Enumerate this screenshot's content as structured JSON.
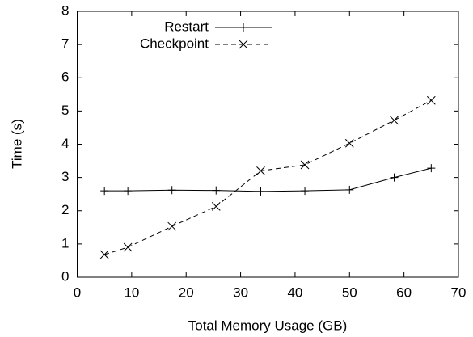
{
  "chart_data": {
    "type": "line",
    "x_label": "Total Memory Usage (GB)",
    "y_label": "Time (s)",
    "xlim": [
      0,
      70
    ],
    "xticks": [
      0,
      10,
      20,
      30,
      40,
      50,
      60,
      70
    ],
    "ylim": [
      0,
      8
    ],
    "yticks": [
      0,
      1,
      2,
      3,
      4,
      5,
      6,
      7,
      8
    ],
    "legend": "top-left",
    "series": [
      {
        "name": "Restart",
        "color": "#000000",
        "line": "solid",
        "marker": "plus",
        "x": [
          5,
          9.3,
          17.4,
          25.5,
          33.7,
          41.8,
          50,
          58.2,
          65
        ],
        "values": [
          2.6,
          2.6,
          2.62,
          2.61,
          2.58,
          2.6,
          2.63,
          3.0,
          3.28
        ]
      },
      {
        "name": "Checkpoint",
        "color": "#000000",
        "line": "dashed",
        "marker": "cross",
        "x": [
          5,
          9.3,
          17.4,
          25.5,
          33.7,
          41.8,
          50,
          58.2,
          65
        ],
        "values": [
          0.68,
          0.9,
          1.53,
          2.13,
          3.2,
          3.38,
          4.03,
          4.72,
          5.32
        ]
      }
    ]
  }
}
